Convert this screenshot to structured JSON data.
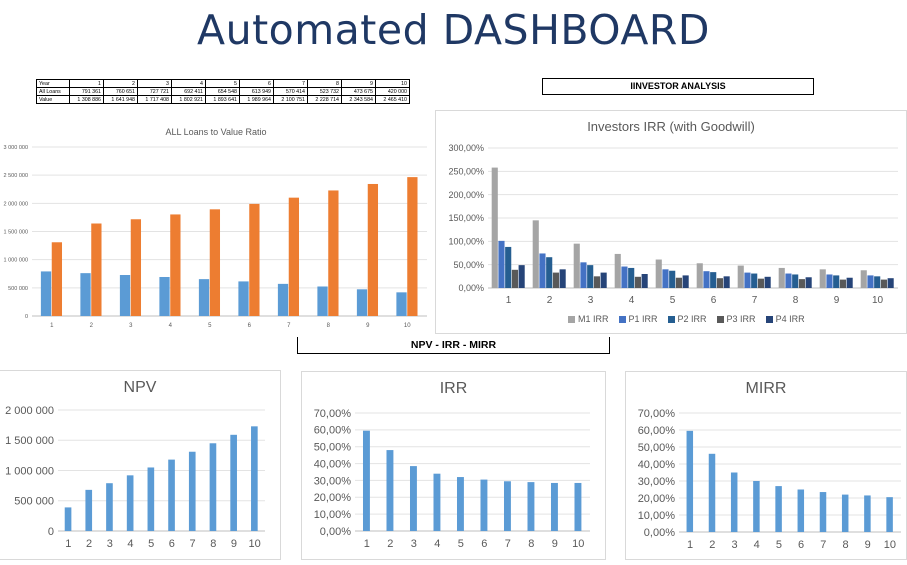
{
  "page": {
    "title": "Automated DASHBOARD"
  },
  "table": {
    "header_label": "Year",
    "years": [
      "1",
      "2",
      "3",
      "4",
      "5",
      "6",
      "7",
      "8",
      "9",
      "10"
    ],
    "rows": [
      {
        "label": "All Loans",
        "values": [
          "791 361",
          "760 651",
          "727 721",
          "692 411",
          "654 548",
          "613 949",
          "570 414",
          "523 732",
          "473 675",
          "420 000"
        ]
      },
      {
        "label": "Value",
        "values": [
          "1 308 886",
          "1 641 948",
          "1 717 408",
          "1 802 921",
          "1 893 641",
          "1 989 964",
          "2 100 751",
          "2 228 714",
          "2 343 584",
          "2 465 410"
        ]
      }
    ]
  },
  "labels": {
    "investor_analysis": "IINVESTOR ANALYSIS",
    "npv_irr_mirr": "NPV - IRR - MIRR"
  },
  "chart_data": [
    {
      "id": "loans",
      "type": "bar",
      "title": "ALL Loans to Value Ratio",
      "categories": [
        "1",
        "2",
        "3",
        "4",
        "5",
        "6",
        "7",
        "8",
        "9",
        "10"
      ],
      "series": [
        {
          "values": [
            791361,
            760651,
            727721,
            692411,
            654548,
            613949,
            570414,
            523732,
            473675,
            420000
          ],
          "color": "#5b9bd5"
        },
        {
          "values": [
            1308886,
            1641948,
            1717408,
            1802921,
            1893641,
            1989964,
            2100751,
            2228714,
            2343584,
            2465410
          ],
          "color": "#ed7d31"
        }
      ],
      "ylim": [
        0,
        3000000
      ],
      "yticks": [
        0,
        500000,
        1000000,
        1500000,
        2000000,
        2500000,
        3000000
      ],
      "ytick_labels": [
        "0",
        "500 000",
        "1 000 000",
        "1 500 000",
        "2 000 000",
        "2 500 000",
        "3 000 000"
      ],
      "grid": true
    },
    {
      "id": "investors",
      "type": "bar",
      "title": "Investors IRR (with Goodwill)",
      "categories": [
        "1",
        "2",
        "3",
        "4",
        "5",
        "6",
        "7",
        "8",
        "9",
        "10"
      ],
      "series": [
        {
          "name": "M1 IRR",
          "values": [
            258,
            145,
            95,
            73,
            61,
            53,
            48,
            43,
            40,
            38
          ],
          "color": "#a5a5a5"
        },
        {
          "name": "P1 IRR",
          "values": [
            101,
            74,
            55,
            46,
            40,
            36,
            33,
            31,
            29,
            27
          ],
          "color": "#4472c4"
        },
        {
          "name": "P2 IRR",
          "values": [
            88,
            66,
            49,
            43,
            37,
            34,
            31,
            29,
            27,
            25
          ],
          "color": "#255e91"
        },
        {
          "name": "P3 IRR",
          "values": [
            39,
            33,
            25,
            24,
            22,
            21,
            20,
            19,
            18,
            18
          ],
          "color": "#595959"
        },
        {
          "name": "P4 IRR",
          "values": [
            49,
            40,
            33,
            30,
            27,
            25,
            24,
            23,
            22,
            21
          ],
          "color": "#264478"
        }
      ],
      "ylim": [
        0,
        300
      ],
      "yticks": [
        0,
        50,
        100,
        150,
        200,
        250,
        300
      ],
      "ytick_labels": [
        "0,00%",
        "50,00%",
        "100,00%",
        "150,00%",
        "200,00%",
        "250,00%",
        "300,00%"
      ],
      "legend_position": "bottom",
      "grid": true
    },
    {
      "id": "npv",
      "type": "bar",
      "title": "NPV",
      "categories": [
        "1",
        "2",
        "3",
        "4",
        "5",
        "6",
        "7",
        "8",
        "9",
        "10"
      ],
      "values": [
        390000,
        680000,
        790000,
        920000,
        1050000,
        1180000,
        1310000,
        1450000,
        1590000,
        1730000
      ],
      "color": "#5b9bd5",
      "ylim": [
        0,
        2000000
      ],
      "yticks": [
        0,
        500000,
        1000000,
        1500000,
        2000000
      ],
      "ytick_labels": [
        "0",
        "500 000",
        "1 000 000",
        "1 500 000",
        "2 000 000"
      ],
      "grid": true
    },
    {
      "id": "irr",
      "type": "bar",
      "title": "IRR",
      "categories": [
        "1",
        "2",
        "3",
        "4",
        "5",
        "6",
        "7",
        "8",
        "9",
        "10"
      ],
      "values": [
        59.5,
        48,
        38.5,
        34,
        32,
        30.5,
        29.5,
        29,
        28.5,
        28.5
      ],
      "color": "#5b9bd5",
      "ylim": [
        0,
        70
      ],
      "yticks": [
        0,
        10,
        20,
        30,
        40,
        50,
        60,
        70
      ],
      "ytick_labels": [
        "0,00%",
        "10,00%",
        "20,00%",
        "30,00%",
        "40,00%",
        "50,00%",
        "60,00%",
        "70,00%"
      ],
      "grid": true
    },
    {
      "id": "mirr",
      "type": "bar",
      "title": "MIRR",
      "categories": [
        "1",
        "2",
        "3",
        "4",
        "5",
        "6",
        "7",
        "8",
        "9",
        "10"
      ],
      "values": [
        59.5,
        46,
        35,
        30,
        27,
        25,
        23.5,
        22,
        21.5,
        20.5
      ],
      "color": "#5b9bd5",
      "ylim": [
        0,
        70
      ],
      "yticks": [
        0,
        10,
        20,
        30,
        40,
        50,
        60,
        70
      ],
      "ytick_labels": [
        "0,00%",
        "10,00%",
        "20,00%",
        "30,00%",
        "40,00%",
        "50,00%",
        "60,00%",
        "70,00%"
      ],
      "grid": true
    }
  ]
}
